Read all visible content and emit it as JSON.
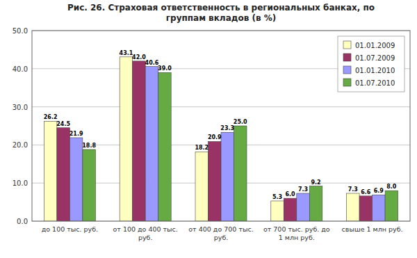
{
  "chart_data": {
    "type": "bar",
    "title": "Рис. 26. Страховая ответственность в региональных банках, по\nгруппам вкладов (в %)",
    "categories": [
      "до 100 тыс. руб.",
      "от 100 до 400 тыс.\nруб.",
      "от 400 до 700 тыс.\nруб.",
      "от 700 тыс. руб. до\n1 млн руб.",
      "свыше 1 млн руб."
    ],
    "series": [
      {
        "name": "01.01.2009",
        "color": "#FFFFC0",
        "values": [
          26.2,
          43.1,
          18.2,
          5.3,
          7.3
        ],
        "value_labels": [
          "26.2",
          "43.1",
          "18.2",
          "5.3",
          "7.3"
        ]
      },
      {
        "name": "01.07.2009",
        "color": "#993366",
        "values": [
          24.5,
          42.0,
          20.9,
          6.0,
          6.6
        ],
        "value_labels": [
          "24.5",
          "42.0",
          "20.9",
          "6.0",
          "6.6"
        ]
      },
      {
        "name": "01.01.2010",
        "color": "#9999FF",
        "values": [
          21.9,
          40.6,
          23.3,
          7.3,
          6.9
        ],
        "value_labels": [
          "21.9",
          "40.6",
          "23.3",
          "7.3",
          "6.9"
        ]
      },
      {
        "name": "01.07.2010",
        "color": "#66AA44",
        "values": [
          18.8,
          39.0,
          25.0,
          9.2,
          8.0
        ],
        "value_labels": [
          "18.8",
          "39.0",
          "25.0",
          "9.2",
          "8.0"
        ]
      }
    ],
    "ylim": [
      0,
      50
    ],
    "yticks": [
      {
        "value": 0,
        "label": "0.0"
      },
      {
        "value": 10,
        "label": "10.0"
      },
      {
        "value": 20,
        "label": "20.0"
      },
      {
        "value": 30,
        "label": "30.0"
      },
      {
        "value": 40,
        "label": "40.0"
      },
      {
        "value": 50,
        "label": "50.0"
      }
    ],
    "grid": true,
    "legend": "upper right",
    "data_labels": true
  }
}
